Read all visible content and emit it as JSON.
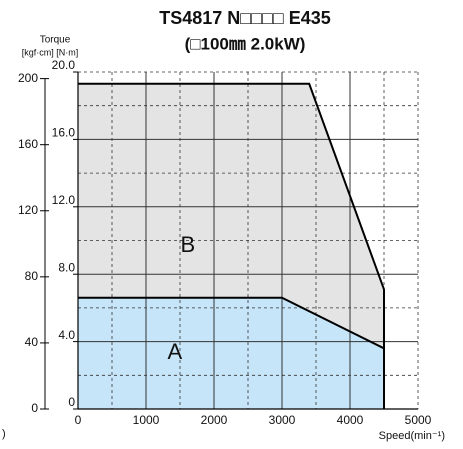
{
  "chart_data": {
    "type": "area",
    "title": "TS4817 N□□□□ E435",
    "subtitle": "(□100㎜ 2.0kW)",
    "y_label": "Torque",
    "y_units": "[kgf·cm] [N·m]",
    "x_label": "Speed(min⁻¹)",
    "note": ")",
    "series": [
      {
        "name": "B",
        "color": "#e4e4e4",
        "x": [
          0,
          3400,
          4500
        ],
        "values": [
          19.3,
          19.3,
          7.1
        ]
      },
      {
        "name": "A",
        "color": "#c6e5f8",
        "x": [
          0,
          3000,
          4500
        ],
        "values": [
          6.6,
          6.6,
          3.6
        ]
      }
    ],
    "xlim": [
      0,
      5000
    ],
    "xticks": [
      0,
      1000,
      2000,
      3000,
      4000,
      5000
    ],
    "xminor": [
      500,
      1500,
      2500,
      3500,
      4500
    ],
    "ylim": [
      0,
      20
    ],
    "yticks": [
      0,
      {
        "value": 4,
        "label": "4.0"
      },
      {
        "value": 8,
        "label": "8.0"
      },
      {
        "value": 12,
        "label": "12.0"
      },
      {
        "value": 16,
        "label": "16.0"
      },
      {
        "value": 20,
        "label": "20.0"
      }
    ],
    "yminor": [
      2,
      6,
      10,
      14,
      18
    ],
    "y2lim": [
      0,
      204
    ],
    "y2ticks": [
      0,
      40,
      80,
      120,
      160,
      200
    ],
    "grid": true
  }
}
